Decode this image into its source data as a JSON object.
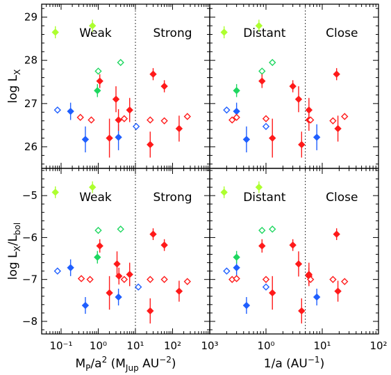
{
  "chart_data": {
    "type": "scatter",
    "panels": [
      {
        "id": "top-left",
        "xscale": "log",
        "xlim": [
          0.03,
          1000
        ],
        "ylim": [
          25.5,
          29.3
        ],
        "divider_x": 10,
        "labels": [
          "Weak",
          "Strong"
        ],
        "ylabel": {
          "main": "log L",
          "sub": "X",
          "after": ""
        },
        "yticks": [
          26,
          27,
          28,
          29
        ],
        "points": [
          {
            "x": 0.07,
            "y": 28.65,
            "color": "#adff2f",
            "filled": true,
            "err": 0.14
          },
          {
            "x": 0.7,
            "y": 28.8,
            "color": "#adff2f",
            "filled": true,
            "err": 0.14
          },
          {
            "x": 0.08,
            "y": 26.85,
            "color": "#1f5fff",
            "filled": false,
            "err": 0
          },
          {
            "x": 0.18,
            "y": 26.82,
            "color": "#1f5fff",
            "filled": true,
            "err": 0.2
          },
          {
            "x": 0.45,
            "y": 26.17,
            "color": "#1f5fff",
            "filled": true,
            "err": 0.3
          },
          {
            "x": 3.5,
            "y": 26.22,
            "color": "#1f5fff",
            "filled": true,
            "err": 0.3
          },
          {
            "x": 10.5,
            "y": 26.47,
            "color": "#1f5fff",
            "filled": false,
            "err": 0
          },
          {
            "x": 1.0,
            "y": 27.75,
            "color": "#1ed760",
            "filled": false,
            "err": 0
          },
          {
            "x": 4.0,
            "y": 27.95,
            "color": "#1ed760",
            "filled": false,
            "err": 0
          },
          {
            "x": 0.95,
            "y": 27.3,
            "color": "#1ed760",
            "filled": true,
            "err": 0.15
          },
          {
            "x": 1.1,
            "y": 27.52,
            "color": "#ff1a1a",
            "filled": true,
            "err": 0.16
          },
          {
            "x": 0.33,
            "y": 26.68,
            "color": "#ff1a1a",
            "filled": false,
            "err": 0
          },
          {
            "x": 0.65,
            "y": 26.62,
            "color": "#ff1a1a",
            "filled": false,
            "err": 0
          },
          {
            "x": 2.0,
            "y": 26.2,
            "color": "#ff1a1a",
            "filled": true,
            "err": 0.45
          },
          {
            "x": 3.0,
            "y": 27.1,
            "color": "#ff1a1a",
            "filled": true,
            "err": 0.3
          },
          {
            "x": 3.5,
            "y": 26.62,
            "color": "#ff1a1a",
            "filled": true,
            "err": 0.25
          },
          {
            "x": 5.0,
            "y": 26.65,
            "color": "#ff1a1a",
            "filled": false,
            "err": 0
          },
          {
            "x": 7.0,
            "y": 26.85,
            "color": "#ff1a1a",
            "filled": true,
            "err": 0.28
          },
          {
            "x": 25,
            "y": 26.05,
            "color": "#ff1a1a",
            "filled": true,
            "err": 0.3
          },
          {
            "x": 30,
            "y": 27.68,
            "color": "#ff1a1a",
            "filled": true,
            "err": 0.14
          },
          {
            "x": 25,
            "y": 26.62,
            "color": "#ff1a1a",
            "filled": false,
            "err": 0
          },
          {
            "x": 60,
            "y": 27.4,
            "color": "#ff1a1a",
            "filled": true,
            "err": 0.14
          },
          {
            "x": 60,
            "y": 26.6,
            "color": "#ff1a1a",
            "filled": false,
            "err": 0
          },
          {
            "x": 150,
            "y": 26.42,
            "color": "#ff1a1a",
            "filled": true,
            "err": 0.3
          },
          {
            "x": 250,
            "y": 26.7,
            "color": "#ff1a1a",
            "filled": false,
            "err": 0
          }
        ]
      },
      {
        "id": "top-right",
        "xscale": "log",
        "xlim": [
          0.1,
          100
        ],
        "ylim": [
          25.5,
          29.3
        ],
        "divider_x": 5,
        "labels": [
          "Distant",
          "Close"
        ],
        "points": [
          {
            "x": 0.18,
            "y": 28.65,
            "color": "#adff2f",
            "filled": true,
            "err": 0.14
          },
          {
            "x": 0.75,
            "y": 28.8,
            "color": "#adff2f",
            "filled": true,
            "err": 0.14
          },
          {
            "x": 0.2,
            "y": 26.85,
            "color": "#1f5fff",
            "filled": false,
            "err": 0
          },
          {
            "x": 0.3,
            "y": 26.82,
            "color": "#1f5fff",
            "filled": true,
            "err": 0.2
          },
          {
            "x": 0.45,
            "y": 26.17,
            "color": "#1f5fff",
            "filled": true,
            "err": 0.3
          },
          {
            "x": 8,
            "y": 26.22,
            "color": "#1f5fff",
            "filled": true,
            "err": 0.3
          },
          {
            "x": 1.0,
            "y": 26.47,
            "color": "#1f5fff",
            "filled": false,
            "err": 0
          },
          {
            "x": 0.85,
            "y": 27.75,
            "color": "#1ed760",
            "filled": false,
            "err": 0
          },
          {
            "x": 1.3,
            "y": 27.95,
            "color": "#1ed760",
            "filled": false,
            "err": 0
          },
          {
            "x": 0.3,
            "y": 27.3,
            "color": "#1ed760",
            "filled": true,
            "err": 0.15
          },
          {
            "x": 0.85,
            "y": 27.52,
            "color": "#ff1a1a",
            "filled": true,
            "err": 0.16
          },
          {
            "x": 0.25,
            "y": 26.62,
            "color": "#ff1a1a",
            "filled": false,
            "err": 0
          },
          {
            "x": 0.3,
            "y": 26.68,
            "color": "#ff1a1a",
            "filled": false,
            "err": 0
          },
          {
            "x": 1.3,
            "y": 26.2,
            "color": "#ff1a1a",
            "filled": true,
            "err": 0.45
          },
          {
            "x": 3.8,
            "y": 27.1,
            "color": "#ff1a1a",
            "filled": true,
            "err": 0.3
          },
          {
            "x": 5.8,
            "y": 26.62,
            "color": "#ff1a1a",
            "filled": true,
            "err": 0.25
          },
          {
            "x": 1.0,
            "y": 26.65,
            "color": "#ff1a1a",
            "filled": false,
            "err": 0
          },
          {
            "x": 5.8,
            "y": 26.85,
            "color": "#ff1a1a",
            "filled": true,
            "err": 0.28
          },
          {
            "x": 4.3,
            "y": 26.05,
            "color": "#ff1a1a",
            "filled": true,
            "err": 0.3
          },
          {
            "x": 18,
            "y": 27.68,
            "color": "#ff1a1a",
            "filled": true,
            "err": 0.14
          },
          {
            "x": 6.2,
            "y": 26.62,
            "color": "#ff1a1a",
            "filled": false,
            "err": 0
          },
          {
            "x": 3.0,
            "y": 27.4,
            "color": "#ff1a1a",
            "filled": true,
            "err": 0.14
          },
          {
            "x": 15.5,
            "y": 26.6,
            "color": "#ff1a1a",
            "filled": false,
            "err": 0
          },
          {
            "x": 19,
            "y": 26.42,
            "color": "#ff1a1a",
            "filled": true,
            "err": 0.3
          },
          {
            "x": 25,
            "y": 26.7,
            "color": "#ff1a1a",
            "filled": false,
            "err": 0
          }
        ]
      },
      {
        "id": "bottom-left",
        "xscale": "log",
        "xlim": [
          0.03,
          1000
        ],
        "ylim": [
          -8.3,
          -4.35
        ],
        "divider_x": 10,
        "labels": [
          "Weak",
          "Strong"
        ],
        "ylabel": {
          "main": "log L",
          "sub": "X",
          "after": "/L",
          "sub2": "bol"
        },
        "yticks": [
          -8,
          -7,
          -6,
          -5
        ],
        "xticks": [
          "10⁻¹",
          "10⁰",
          "10¹",
          "10²",
          "10³"
        ],
        "xticks_at": [
          0.1,
          1,
          10,
          100,
          1000
        ],
        "xlabel": {
          "main": "M",
          "sub": "P",
          "mid": "/a",
          "sup": "2",
          "open": " (M",
          "sub2": "Jup",
          "unit": " AU",
          "sup2": "−2",
          "close": ")"
        },
        "points": [
          {
            "x": 0.07,
            "y": -4.92,
            "color": "#adff2f",
            "filled": true,
            "err": 0.14
          },
          {
            "x": 0.7,
            "y": -4.8,
            "color": "#adff2f",
            "filled": true,
            "err": 0.14
          },
          {
            "x": 0.08,
            "y": -6.8,
            "color": "#1f5fff",
            "filled": false,
            "err": 0
          },
          {
            "x": 0.18,
            "y": -6.72,
            "color": "#1f5fff",
            "filled": true,
            "err": 0.2
          },
          {
            "x": 0.45,
            "y": -7.62,
            "color": "#1f5fff",
            "filled": true,
            "err": 0.2
          },
          {
            "x": 3.5,
            "y": -7.42,
            "color": "#1f5fff",
            "filled": true,
            "err": 0.2
          },
          {
            "x": 12,
            "y": -7.18,
            "color": "#1f5fff",
            "filled": false,
            "err": 0
          },
          {
            "x": 1.0,
            "y": -5.83,
            "color": "#1ed760",
            "filled": false,
            "err": 0
          },
          {
            "x": 4.0,
            "y": -5.8,
            "color": "#1ed760",
            "filled": false,
            "err": 0
          },
          {
            "x": 0.95,
            "y": -6.47,
            "color": "#1ed760",
            "filled": true,
            "err": 0.15
          },
          {
            "x": 1.1,
            "y": -6.2,
            "color": "#ff1a1a",
            "filled": true,
            "err": 0.16
          },
          {
            "x": 0.35,
            "y": -6.98,
            "color": "#ff1a1a",
            "filled": false,
            "err": 0
          },
          {
            "x": 0.6,
            "y": -7.0,
            "color": "#ff1a1a",
            "filled": false,
            "err": 0
          },
          {
            "x": 2.0,
            "y": -7.32,
            "color": "#ff1a1a",
            "filled": true,
            "err": 0.4
          },
          {
            "x": 3.2,
            "y": -6.63,
            "color": "#ff1a1a",
            "filled": true,
            "err": 0.3
          },
          {
            "x": 3.6,
            "y": -6.92,
            "color": "#ff1a1a",
            "filled": true,
            "err": 0.2
          },
          {
            "x": 5.0,
            "y": -7.0,
            "color": "#ff1a1a",
            "filled": false,
            "err": 0
          },
          {
            "x": 7.0,
            "y": -6.88,
            "color": "#ff1a1a",
            "filled": true,
            "err": 0.28
          },
          {
            "x": 25,
            "y": -7.75,
            "color": "#ff1a1a",
            "filled": true,
            "err": 0.3
          },
          {
            "x": 30,
            "y": -5.92,
            "color": "#ff1a1a",
            "filled": true,
            "err": 0.14
          },
          {
            "x": 25,
            "y": -7.0,
            "color": "#ff1a1a",
            "filled": false,
            "err": 0
          },
          {
            "x": 60,
            "y": -6.18,
            "color": "#ff1a1a",
            "filled": true,
            "err": 0.14
          },
          {
            "x": 60,
            "y": -7.0,
            "color": "#ff1a1a",
            "filled": false,
            "err": 0
          },
          {
            "x": 150,
            "y": -7.28,
            "color": "#ff1a1a",
            "filled": true,
            "err": 0.25
          },
          {
            "x": 250,
            "y": -7.05,
            "color": "#ff1a1a",
            "filled": false,
            "err": 0
          }
        ]
      },
      {
        "id": "bottom-right",
        "xscale": "log",
        "xlim": [
          0.1,
          100
        ],
        "ylim": [
          -8.3,
          -4.35
        ],
        "divider_x": 5,
        "labels": [
          "Distant",
          "Close"
        ],
        "xticks": [
          "10⁰",
          "10¹",
          "10²"
        ],
        "xticks_at": [
          1,
          10,
          100
        ],
        "xlabel": {
          "main": "1/a (AU",
          "sup": "−1",
          "close": ")"
        },
        "points": [
          {
            "x": 0.18,
            "y": -4.92,
            "color": "#adff2f",
            "filled": true,
            "err": 0.14
          },
          {
            "x": 0.75,
            "y": -4.8,
            "color": "#adff2f",
            "filled": true,
            "err": 0.14
          },
          {
            "x": 0.2,
            "y": -6.8,
            "color": "#1f5fff",
            "filled": false,
            "err": 0
          },
          {
            "x": 0.3,
            "y": -6.72,
            "color": "#1f5fff",
            "filled": true,
            "err": 0.2
          },
          {
            "x": 0.45,
            "y": -7.62,
            "color": "#1f5fff",
            "filled": true,
            "err": 0.2
          },
          {
            "x": 8,
            "y": -7.42,
            "color": "#1f5fff",
            "filled": true,
            "err": 0.2
          },
          {
            "x": 1.0,
            "y": -7.18,
            "color": "#1f5fff",
            "filled": false,
            "err": 0
          },
          {
            "x": 0.85,
            "y": -5.83,
            "color": "#1ed760",
            "filled": false,
            "err": 0
          },
          {
            "x": 1.3,
            "y": -5.8,
            "color": "#1ed760",
            "filled": false,
            "err": 0
          },
          {
            "x": 0.3,
            "y": -6.47,
            "color": "#1ed760",
            "filled": true,
            "err": 0.15
          },
          {
            "x": 0.85,
            "y": -6.2,
            "color": "#ff1a1a",
            "filled": true,
            "err": 0.16
          },
          {
            "x": 0.25,
            "y": -7.0,
            "color": "#ff1a1a",
            "filled": false,
            "err": 0
          },
          {
            "x": 0.3,
            "y": -6.98,
            "color": "#ff1a1a",
            "filled": false,
            "err": 0
          },
          {
            "x": 1.3,
            "y": -7.32,
            "color": "#ff1a1a",
            "filled": true,
            "err": 0.4
          },
          {
            "x": 3.8,
            "y": -6.63,
            "color": "#ff1a1a",
            "filled": true,
            "err": 0.3
          },
          {
            "x": 5.8,
            "y": -6.92,
            "color": "#ff1a1a",
            "filled": true,
            "err": 0.2
          },
          {
            "x": 1.0,
            "y": -7.0,
            "color": "#ff1a1a",
            "filled": false,
            "err": 0
          },
          {
            "x": 5.8,
            "y": -6.88,
            "color": "#ff1a1a",
            "filled": true,
            "err": 0.28
          },
          {
            "x": 4.3,
            "y": -7.75,
            "color": "#ff1a1a",
            "filled": true,
            "err": 0.3
          },
          {
            "x": 18,
            "y": -5.92,
            "color": "#ff1a1a",
            "filled": true,
            "err": 0.14
          },
          {
            "x": 6.2,
            "y": -7.0,
            "color": "#ff1a1a",
            "filled": false,
            "err": 0
          },
          {
            "x": 3.0,
            "y": -6.18,
            "color": "#ff1a1a",
            "filled": true,
            "err": 0.14
          },
          {
            "x": 15.5,
            "y": -7.0,
            "color": "#ff1a1a",
            "filled": false,
            "err": 0
          },
          {
            "x": 19,
            "y": -7.28,
            "color": "#ff1a1a",
            "filled": true,
            "err": 0.25
          },
          {
            "x": 25,
            "y": -7.05,
            "color": "#ff1a1a",
            "filled": false,
            "err": 0
          }
        ]
      }
    ],
    "grid": false
  }
}
